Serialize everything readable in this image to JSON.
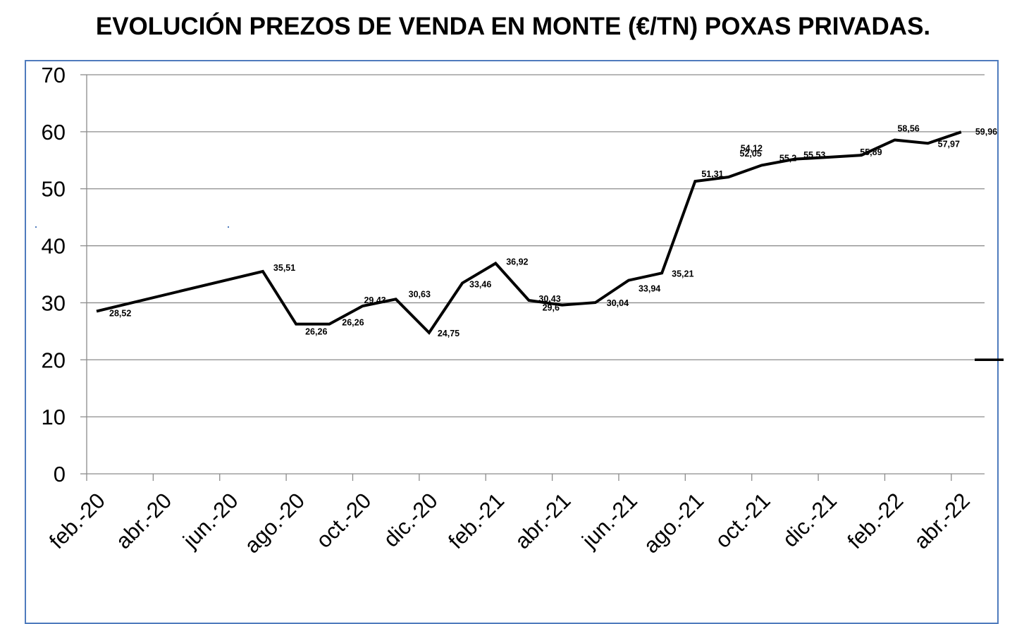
{
  "chart_data": {
    "type": "line",
    "title": "EVOLUCIÓN PREZOS DE VENDA EN MONTE (€/TN) POXAS PRIVADAS.",
    "xlabel": "",
    "ylabel": "",
    "ylim": [
      0,
      70
    ],
    "yticks": [
      "0",
      "10",
      "20",
      "30",
      "40",
      "50",
      "60",
      "70"
    ],
    "xticks": [
      "feb.-20",
      "abr.-20",
      "jun.-20",
      "ago.-20",
      "oct.-20",
      "dic.-20",
      "feb.-21",
      "abr.-21",
      "jun.-21",
      "ago.-21",
      "oct.-21",
      "dic.-21",
      "feb.-22",
      "abr.-22"
    ],
    "grid": true,
    "line_color": "#000000",
    "frame_color": "#4f7bbd",
    "series": [
      {
        "points": [
          {
            "x": "feb.-20",
            "y": 28.52,
            "label": "28,52"
          },
          {
            "x": "jul.-20",
            "y": 35.51,
            "label": "35,51"
          },
          {
            "x": "ago.-20",
            "y": 26.26,
            "label": "26,26"
          },
          {
            "x": "set.-20",
            "y": 26.26,
            "label": "26,26"
          },
          {
            "x": "oct.-20",
            "y": 29.43,
            "label": "29,43"
          },
          {
            "x": "nov.-20",
            "y": 30.63,
            "label": "30,63"
          },
          {
            "x": "dic.-20",
            "y": 24.75,
            "label": "24,75"
          },
          {
            "x": "xan.-21",
            "y": 33.46,
            "label": "33,46"
          },
          {
            "x": "feb.-21",
            "y": 36.92,
            "label": "36,92"
          },
          {
            "x": "mar.-21",
            "y": 30.43,
            "label": "30,43"
          },
          {
            "x": "abr.-21",
            "y": 29.6,
            "label": "29,6"
          },
          {
            "x": "mai.-21",
            "y": 30.04,
            "label": "30,04"
          },
          {
            "x": "xuñ.-21",
            "y": 33.94,
            "label": "33,94"
          },
          {
            "x": "xul.-21",
            "y": 35.21,
            "label": "35,21"
          },
          {
            "x": "ago.-21",
            "y": 51.31,
            "label": "51,31"
          },
          {
            "x": "set.-21",
            "y": 52.05,
            "label": "52,05"
          },
          {
            "x": "oct.-21",
            "y": 54.12,
            "label": "54,12"
          },
          {
            "x": "nov.-21",
            "y": 55.2,
            "label": "55,2"
          },
          {
            "x": "dic.-21",
            "y": 55.53,
            "label": "55,53"
          },
          {
            "x": "xan.-22",
            "y": 55.89,
            "label": "55,89"
          },
          {
            "x": "feb.-22",
            "y": 58.56,
            "label": "58,56"
          },
          {
            "x": "mar.-22",
            "y": 57.97,
            "label": "57,97"
          },
          {
            "x": "abr.-22",
            "y": 59.96,
            "label": "59,96"
          }
        ]
      }
    ],
    "legend": {
      "position": "right",
      "marker_value": 20
    }
  }
}
